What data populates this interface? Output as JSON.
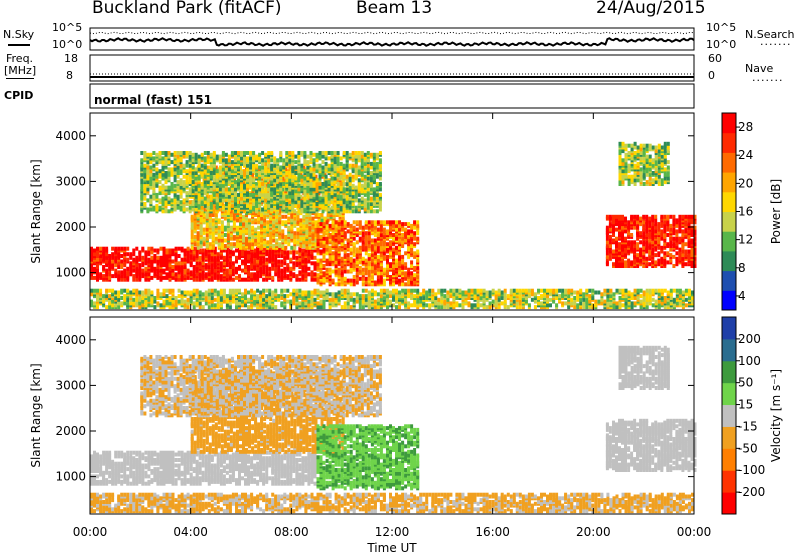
{
  "header": {
    "station": "Buckland Park (fitACF)",
    "beam": "Beam 13",
    "date": "24/Aug/2015"
  },
  "top_panels": {
    "nsky_label": "N.Sky",
    "nsearch_label": "N.Search",
    "noise_ticks": [
      "10^5",
      "10^0"
    ],
    "freq_label_1": "Freq.",
    "freq_label_2": "[MHz]",
    "freq_ticks": [
      "18",
      "8"
    ],
    "nave_label": "Nave",
    "nave_ticks": [
      "60",
      "0"
    ],
    "cpid_label": "CPID",
    "cpid_text": "normal (fast) 151"
  },
  "chart_data": [
    {
      "type": "heatmap",
      "title": "",
      "xlabel": "Time UT",
      "ylabel": "Slant Range [km]",
      "x_ticks": [
        "00:00",
        "04:00",
        "08:00",
        "12:00",
        "16:00",
        "20:00",
        "00:00"
      ],
      "y_ticks": [
        1000,
        2000,
        3000,
        4000
      ],
      "xlim_hours": [
        0,
        24
      ],
      "ylim_km": [
        180,
        4500
      ],
      "colorbar": {
        "label": "Power [dB]",
        "ticks": [
          4,
          8,
          12,
          16,
          20,
          24,
          28
        ],
        "colors": [
          "#0000ff",
          "#1e4fb0",
          "#2e8b57",
          "#58b64a",
          "#c8d24a",
          "#ffd700",
          "#ffa500",
          "#ff6a00",
          "#ff2a00",
          "#ff0000"
        ]
      },
      "regions": [
        {
          "name": "band-1200km",
          "t": [
            0,
            9
          ],
          "r": [
            800,
            1500
          ],
          "value": 27
        },
        {
          "name": "rising-arc",
          "t": [
            4,
            10
          ],
          "r": [
            1500,
            3300
          ],
          "value": 18
        },
        {
          "name": "noon-echo",
          "t": [
            9,
            13
          ],
          "r": [
            700,
            2100
          ],
          "value": 22
        },
        {
          "name": "high-echo",
          "t": [
            2,
            11.5
          ],
          "r": [
            2300,
            3600
          ],
          "value": 14
        },
        {
          "name": "ground-near",
          "t": [
            0,
            24
          ],
          "r": [
            200,
            600
          ],
          "value": 15
        },
        {
          "name": "evening-band",
          "t": [
            20.5,
            24
          ],
          "r": [
            1100,
            2200
          ],
          "value": 26
        },
        {
          "name": "evening-upper",
          "t": [
            21,
            23
          ],
          "r": [
            2900,
            3800
          ],
          "value": 14
        }
      ]
    },
    {
      "type": "heatmap",
      "title": "",
      "xlabel": "Time UT",
      "ylabel": "Slant Range [km]",
      "x_ticks": [
        "00:00",
        "04:00",
        "08:00",
        "12:00",
        "16:00",
        "20:00",
        "00:00"
      ],
      "y_ticks": [
        1000,
        2000,
        3000,
        4000
      ],
      "xlim_hours": [
        0,
        24
      ],
      "ylim_km": [
        180,
        4500
      ],
      "colorbar": {
        "label": "Velocity [m s⁻¹]",
        "ticks": [
          200,
          100,
          50,
          15,
          -15,
          -50,
          -100,
          -200
        ],
        "colors": [
          "#1f3fa8",
          "#2a6d8f",
          "#3d9a3d",
          "#6fd44a",
          "#c0c0c0",
          "#f0a020",
          "#ff7f00",
          "#ff3300",
          "#ff0000"
        ]
      },
      "regions": [
        {
          "name": "band-1200km",
          "t": [
            0,
            9
          ],
          "r": [
            800,
            1500
          ],
          "value": 0
        },
        {
          "name": "rising-arc",
          "t": [
            4,
            10
          ],
          "r": [
            1500,
            3300
          ],
          "value": -40
        },
        {
          "name": "noon-echo",
          "t": [
            9,
            13
          ],
          "r": [
            700,
            2100
          ],
          "value": 60
        },
        {
          "name": "high-echo",
          "t": [
            2,
            11.5
          ],
          "r": [
            2300,
            3600
          ],
          "value": -20
        },
        {
          "name": "ground-near",
          "t": [
            0,
            24
          ],
          "r": [
            200,
            600
          ],
          "value": -30
        },
        {
          "name": "evening-band",
          "t": [
            20.5,
            24
          ],
          "r": [
            1100,
            2200
          ],
          "value": 0
        },
        {
          "name": "evening-upper",
          "t": [
            21,
            23
          ],
          "r": [
            2900,
            3800
          ],
          "value": 0
        }
      ]
    }
  ]
}
